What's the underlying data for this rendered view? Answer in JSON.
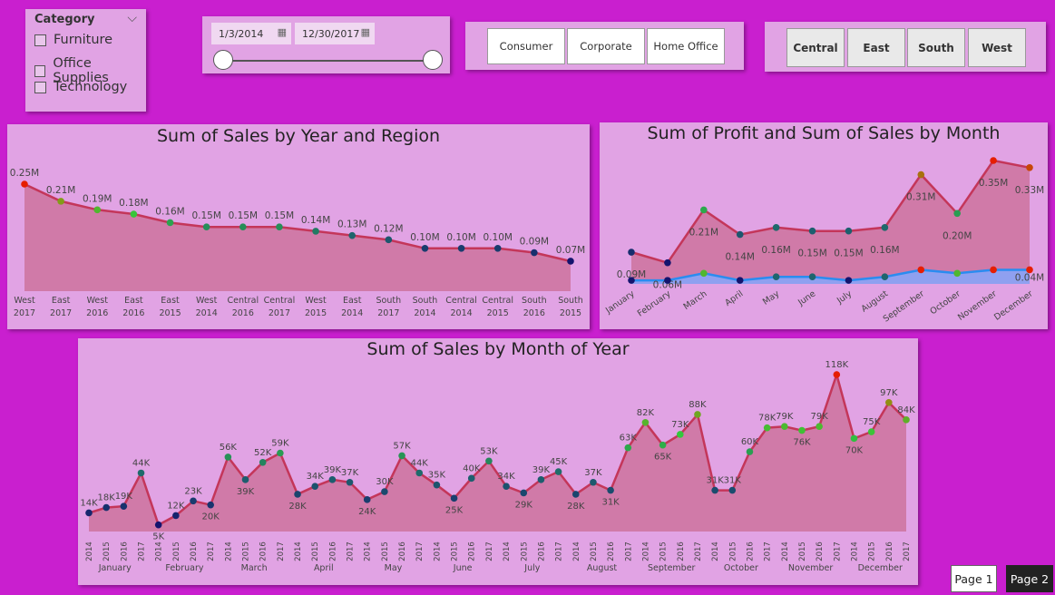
{
  "filters": {
    "category": {
      "title": "Category",
      "items": [
        "Furniture",
        "Office Supplies",
        "Technology"
      ]
    },
    "date_range": {
      "start": "1/3/2014",
      "end": "12/30/2017"
    },
    "segments": [
      "Consumer",
      "Corporate",
      "Home Office"
    ],
    "regions": [
      "Central",
      "East",
      "South",
      "West"
    ]
  },
  "pages": {
    "page1": "Page 1",
    "page2": "Page 2"
  },
  "chart_data": [
    {
      "type": "area",
      "title": "Sum of Sales by Year and Region",
      "categories": [
        {
          "region": "West",
          "year": "2017"
        },
        {
          "region": "East",
          "year": "2017"
        },
        {
          "region": "West",
          "year": "2016"
        },
        {
          "region": "East",
          "year": "2016"
        },
        {
          "region": "East",
          "year": "2015"
        },
        {
          "region": "West",
          "year": "2014"
        },
        {
          "region": "Central",
          "year": "2016"
        },
        {
          "region": "Central",
          "year": "2017"
        },
        {
          "region": "West",
          "year": "2015"
        },
        {
          "region": "East",
          "year": "2014"
        },
        {
          "region": "South",
          "year": "2017"
        },
        {
          "region": "South",
          "year": "2014"
        },
        {
          "region": "Central",
          "year": "2014"
        },
        {
          "region": "Central",
          "year": "2015"
        },
        {
          "region": "South",
          "year": "2016"
        },
        {
          "region": "South",
          "year": "2015"
        }
      ],
      "values": [
        0.25,
        0.21,
        0.19,
        0.18,
        0.16,
        0.15,
        0.15,
        0.15,
        0.14,
        0.13,
        0.12,
        0.1,
        0.1,
        0.1,
        0.09,
        0.07
      ],
      "labels": [
        "0.25M",
        "0.21M",
        "0.19M",
        "0.18M",
        "0.16M",
        "0.15M",
        "0.15M",
        "0.15M",
        "0.14M",
        "0.13M",
        "0.12M",
        "0.10M",
        "0.10M",
        "0.10M",
        "0.09M",
        "0.07M"
      ],
      "unit": "M",
      "ylim": [
        0,
        0.25
      ]
    },
    {
      "type": "area",
      "title": "Sum of Profit and Sum of Sales by Month",
      "categories": [
        "January",
        "February",
        "March",
        "April",
        "May",
        "June",
        "July",
        "August",
        "September",
        "October",
        "November",
        "December"
      ],
      "series": [
        {
          "values": [
            0.09,
            0.06,
            0.21,
            0.14,
            0.16,
            0.15,
            0.15,
            0.16,
            0.31,
            0.2,
            0.35,
            0.33
          ],
          "labels": [
            "0.09M",
            "0.06M",
            "0.21M",
            "0.14M",
            "0.16M",
            "0.15M",
            "0.15M",
            "0.16M",
            "0.31M",
            "0.20M",
            "0.35M",
            "0.33M"
          ]
        },
        {
          "values": [
            0.01,
            0.01,
            0.03,
            0.01,
            0.02,
            0.02,
            0.01,
            0.02,
            0.04,
            0.03,
            0.04,
            0.04
          ],
          "labels": [
            "",
            "",
            "",
            "",
            "",
            "",
            "",
            "",
            "",
            "",
            "",
            "0.04M"
          ]
        }
      ],
      "unit": "M",
      "ylim": [
        0,
        0.35
      ]
    },
    {
      "type": "area",
      "title": "Sum of Sales by Month of Year",
      "months": [
        "January",
        "February",
        "March",
        "April",
        "May",
        "June",
        "July",
        "August",
        "September",
        "October",
        "November",
        "December"
      ],
      "years": [
        "2014",
        "2015",
        "2016",
        "2017"
      ],
      "values": [
        14,
        18,
        19,
        44,
        5,
        12,
        23,
        20,
        56,
        39,
        52,
        59,
        28,
        34,
        39,
        37,
        24,
        30,
        57,
        44,
        35,
        25,
        40,
        53,
        34,
        29,
        39,
        45,
        28,
        37,
        31,
        63,
        82,
        65,
        73,
        88,
        31,
        31,
        60,
        78,
        79,
        76,
        79,
        118,
        70,
        75,
        97,
        84
      ],
      "labels": [
        "14K",
        "18K",
        "19K",
        "44K",
        "5K",
        "12K",
        "23K",
        "20K",
        "56K",
        "39K",
        "52K",
        "59K",
        "28K",
        "34K",
        "39K",
        "37K",
        "24K",
        "30K",
        "57K",
        "44K",
        "35K",
        "25K",
        "40K",
        "53K",
        "34K",
        "29K",
        "39K",
        "45K",
        "28K",
        "37K",
        "31K",
        "63K",
        "82K",
        "65K",
        "73K",
        "88K",
        "31K",
        "31K",
        "60K",
        "78K",
        "79K",
        "76K",
        "79K",
        "118K",
        "70K",
        "75K",
        "97K",
        "84K"
      ],
      "unit": "K",
      "ylim": [
        0,
        118
      ]
    }
  ]
}
